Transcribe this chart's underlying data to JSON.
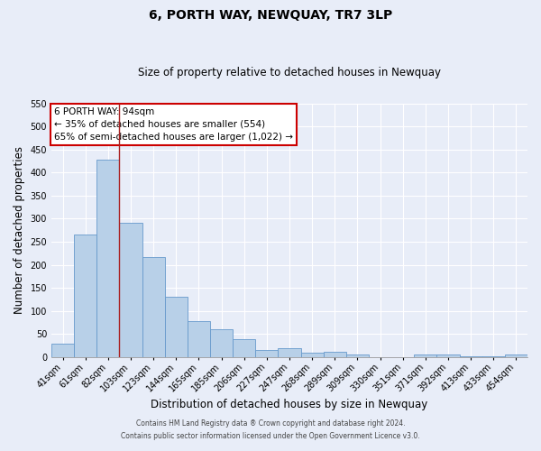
{
  "title": "6, PORTH WAY, NEWQUAY, TR7 3LP",
  "subtitle": "Size of property relative to detached houses in Newquay",
  "xlabel": "Distribution of detached houses by size in Newquay",
  "ylabel": "Number of detached properties",
  "footnote1": "Contains HM Land Registry data ® Crown copyright and database right 2024.",
  "footnote2": "Contains public sector information licensed under the Open Government Licence v3.0.",
  "categories": [
    "41sqm",
    "61sqm",
    "82sqm",
    "103sqm",
    "123sqm",
    "144sqm",
    "165sqm",
    "185sqm",
    "206sqm",
    "227sqm",
    "247sqm",
    "268sqm",
    "289sqm",
    "309sqm",
    "330sqm",
    "351sqm",
    "371sqm",
    "392sqm",
    "413sqm",
    "433sqm",
    "454sqm"
  ],
  "values": [
    30,
    265,
    428,
    291,
    216,
    130,
    78,
    60,
    39,
    16,
    19,
    9,
    11,
    5,
    0,
    0,
    5,
    5,
    1,
    1,
    5
  ],
  "bar_color": "#b8d0e8",
  "bar_edge_color": "#6699cc",
  "vline_color": "#aa2222",
  "vline_x": 2.5,
  "ylim": [
    0,
    550
  ],
  "yticks": [
    0,
    50,
    100,
    150,
    200,
    250,
    300,
    350,
    400,
    450,
    500,
    550
  ],
  "annotation_text": "6 PORTH WAY: 94sqm\n← 35% of detached houses are smaller (554)\n65% of semi-detached houses are larger (1,022) →",
  "annotation_box_color": "#ffffff",
  "annotation_box_edge": "#cc0000",
  "background_color": "#e8edf8",
  "grid_color": "#ffffff",
  "title_fontsize": 10,
  "subtitle_fontsize": 8.5,
  "xlabel_fontsize": 8.5,
  "ylabel_fontsize": 8.5,
  "tick_fontsize": 7,
  "annotation_fontsize": 7.5,
  "footnote_fontsize": 5.5
}
